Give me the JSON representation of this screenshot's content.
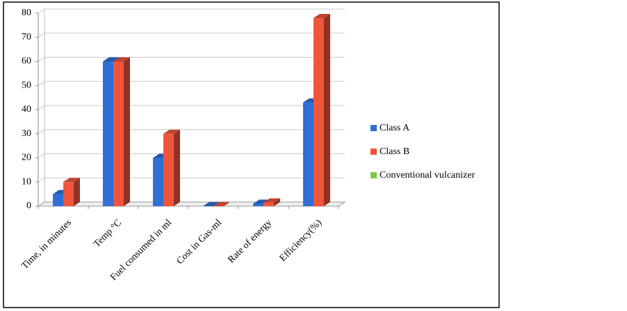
{
  "chart_data": {
    "type": "bar3d",
    "categories": [
      "Time, in minutes",
      "Temp °C",
      "Fuel consumed in ml",
      "Cost in Gas-ml",
      "Rate of energy",
      "Efficiency(%)"
    ],
    "series": [
      {
        "name": "Class A",
        "color": "#2f6fd6",
        "values": [
          5,
          60,
          20,
          0,
          1,
          43
        ]
      },
      {
        "name": "Class B",
        "color": "#f0553c",
        "values": [
          10,
          60,
          30,
          0,
          1.5,
          78
        ]
      },
      {
        "name": "Conventional vulcanizer",
        "color": "#7ac943",
        "values": [
          null,
          null,
          null,
          null,
          null,
          null
        ]
      }
    ],
    "ylim": [
      0,
      80
    ],
    "yticks": [
      0,
      10,
      20,
      30,
      40,
      50,
      60,
      70,
      80
    ],
    "grid": true,
    "legend": "right"
  }
}
